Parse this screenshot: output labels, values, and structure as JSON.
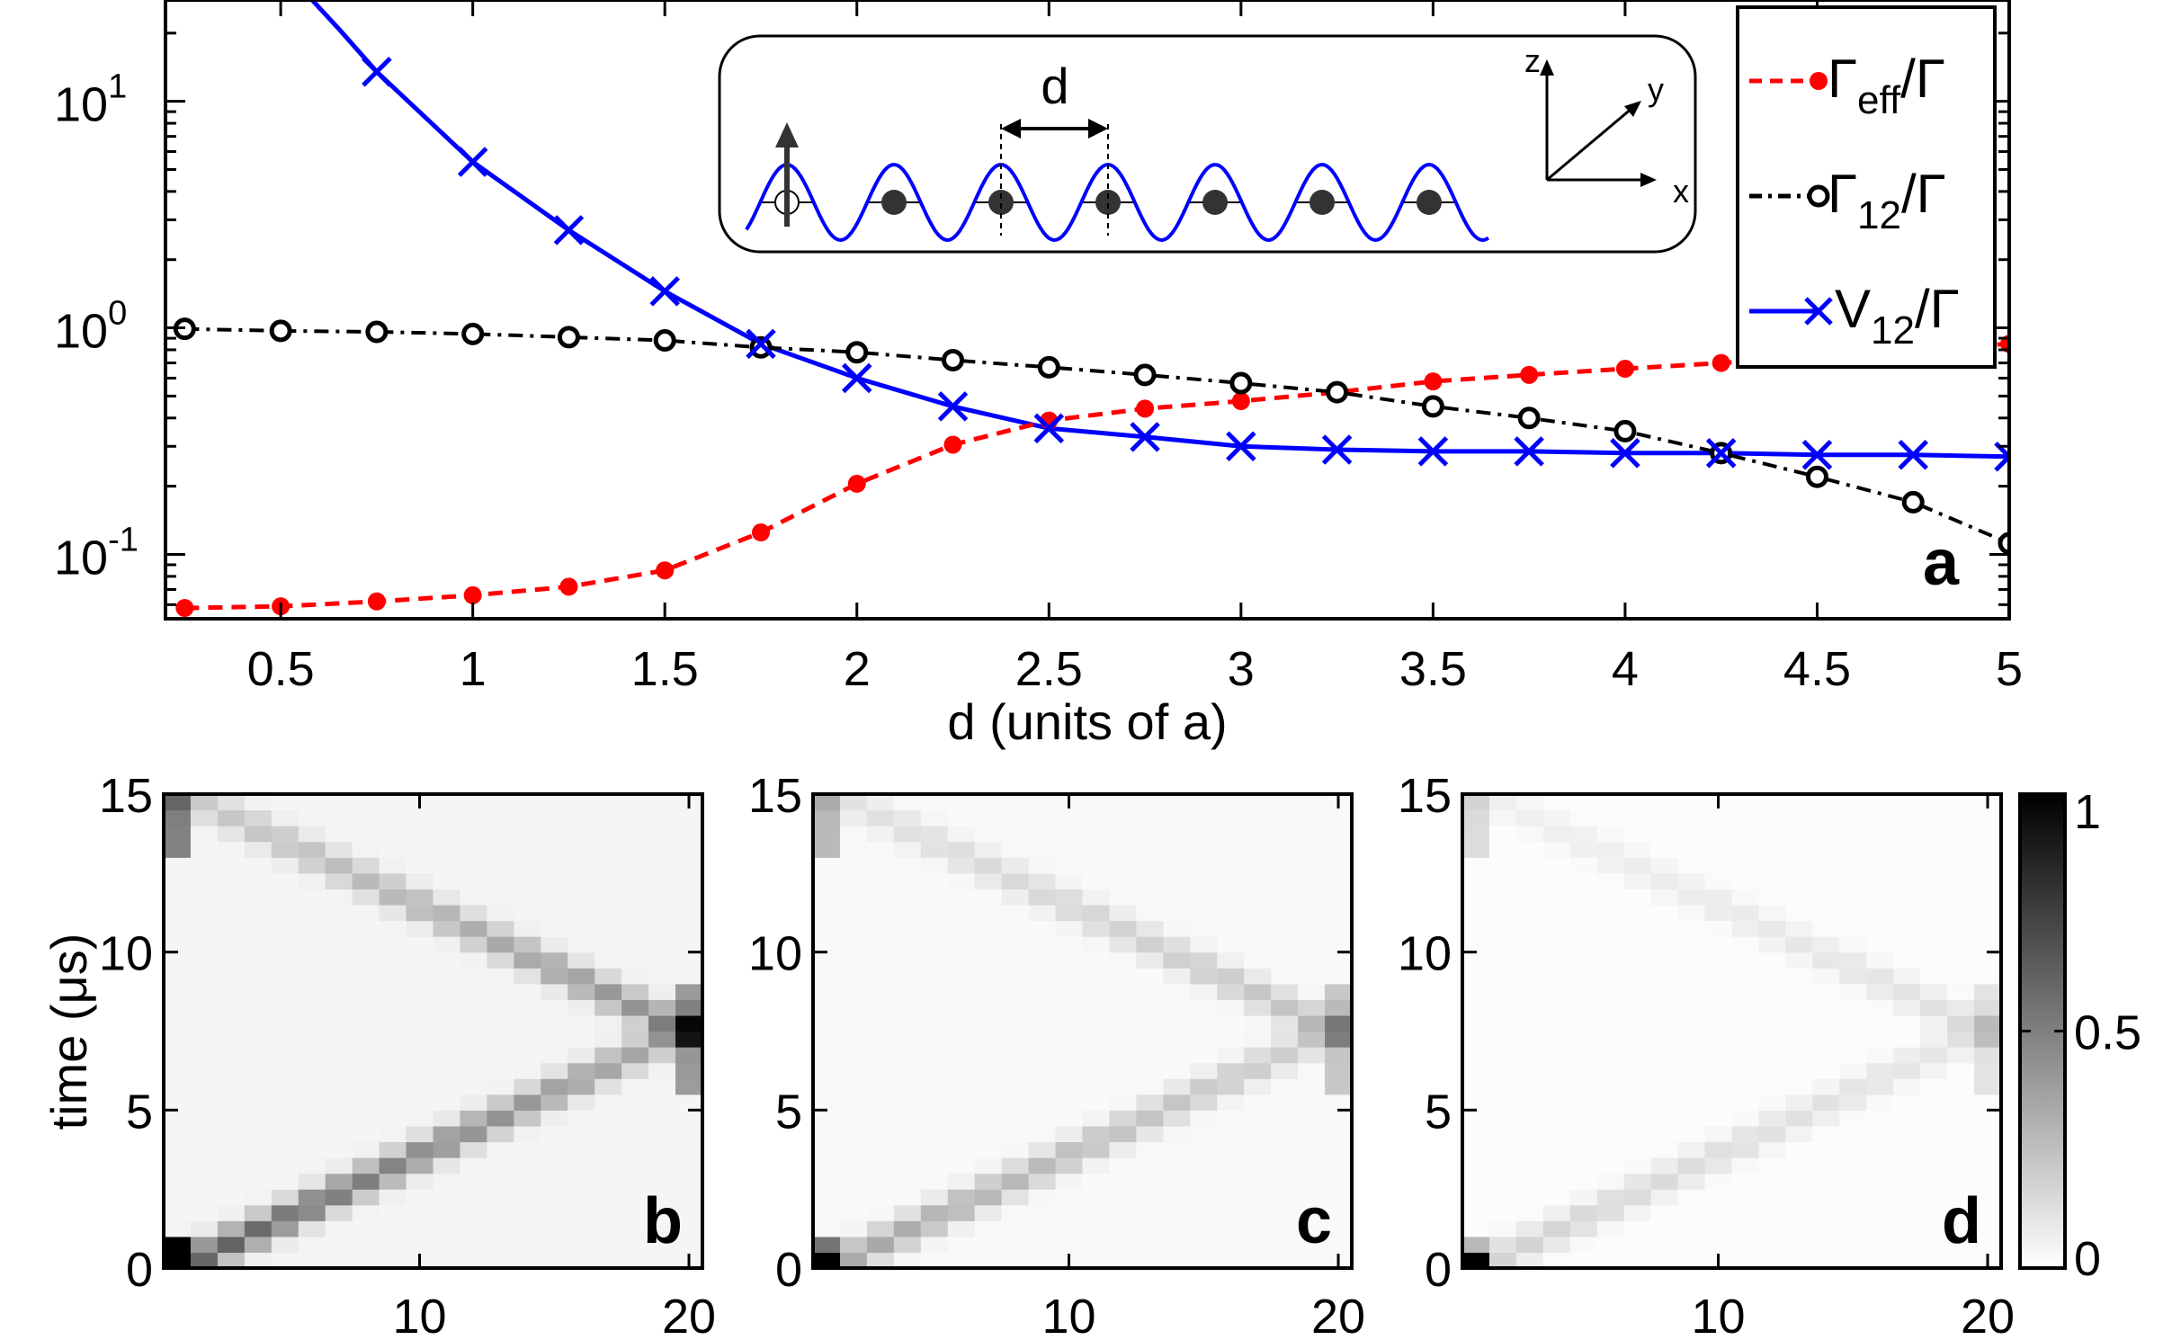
{
  "chart_data": [
    {
      "type": "line",
      "panel": "a",
      "panel_label": "a",
      "xlabel": "d (units of a)",
      "ylabel": "",
      "xlim": [
        0.2,
        5.0
      ],
      "ylim": [
        0.052,
        28
      ],
      "yscale": "log",
      "x_ticks": [
        "0.5",
        "1",
        "1.5",
        "2",
        "2.5",
        "3",
        "3.5",
        "4",
        "4.5",
        "5"
      ],
      "x_tick_values": [
        0.5,
        1,
        1.5,
        2,
        2.5,
        3,
        3.5,
        4,
        4.5,
        5
      ],
      "y_ticks": [
        {
          "base": "10",
          "exp": "1",
          "value": 10
        },
        {
          "base": "10",
          "exp": "0",
          "value": 1
        },
        {
          "base": "10",
          "exp": "-1",
          "value": 0.1
        }
      ],
      "legend": {
        "position": "top-right",
        "entries": [
          {
            "symbol": "Γ",
            "sub": "eff",
            "tail": "/Γ"
          },
          {
            "symbol": "Γ",
            "sub": "12",
            "tail": "/Γ"
          },
          {
            "symbol": "V",
            "sub": "12",
            "tail": "/Γ"
          }
        ]
      },
      "series": [
        {
          "name": "Γeff/Γ",
          "color": "#ff0000",
          "marker": "filled-circle",
          "line": "dashed",
          "x": [
            0.25,
            0.5,
            0.75,
            1.0,
            1.25,
            1.5,
            1.75,
            2.0,
            2.25,
            2.5,
            2.75,
            3.0,
            3.25,
            3.5,
            3.75,
            4.0,
            4.25,
            5.0
          ],
          "values": [
            0.058,
            0.059,
            0.062,
            0.066,
            0.072,
            0.085,
            0.125,
            0.205,
            0.305,
            0.39,
            0.44,
            0.475,
            0.52,
            0.58,
            0.62,
            0.66,
            0.7,
            0.85
          ]
        },
        {
          "name": "Γ12/Γ",
          "color": "#000000",
          "marker": "open-circle",
          "line": "dash-dot",
          "x": [
            0.25,
            0.5,
            0.75,
            1.0,
            1.25,
            1.5,
            1.75,
            2.0,
            2.25,
            2.5,
            2.75,
            3.0,
            3.25,
            3.5,
            3.75,
            4.0,
            4.25,
            4.5,
            4.75,
            5.0
          ],
          "values": [
            0.99,
            0.97,
            0.96,
            0.94,
            0.91,
            0.88,
            0.82,
            0.78,
            0.72,
            0.67,
            0.62,
            0.57,
            0.52,
            0.45,
            0.4,
            0.35,
            0.28,
            0.22,
            0.17,
            0.112
          ]
        },
        {
          "name": "V12/Γ",
          "color": "#0000ff",
          "marker": "x",
          "line": "solid",
          "x": [
            0.75,
            1.0,
            1.25,
            1.5,
            1.75,
            2.0,
            2.25,
            2.5,
            2.75,
            3.0,
            3.25,
            3.5,
            3.75,
            4.0,
            4.25,
            4.5,
            4.75,
            5.0
          ],
          "values": [
            13.5,
            5.4,
            2.7,
            1.45,
            0.85,
            0.6,
            0.45,
            0.36,
            0.33,
            0.3,
            0.29,
            0.285,
            0.285,
            0.28,
            0.28,
            0.275,
            0.275,
            0.27
          ]
        }
      ],
      "inset": {
        "spacing_label": "d",
        "axes": {
          "z": "z",
          "y": "y",
          "x": "x"
        },
        "atoms": 7
      }
    },
    {
      "type": "heatmap",
      "panel": "b",
      "panel_label": "b",
      "ylabel": "time (μs)",
      "y_ticks": [
        "0",
        "5",
        "10",
        "15"
      ],
      "x_ticks": [
        "10",
        "20"
      ],
      "xlim": [
        1,
        20
      ],
      "ylim": [
        0,
        15
      ],
      "contrast": 1.0
    },
    {
      "type": "heatmap",
      "panel": "c",
      "panel_label": "c",
      "y_ticks": [
        "0",
        "5",
        "10",
        "15"
      ],
      "x_ticks": [
        "10",
        "20"
      ],
      "xlim": [
        1,
        20
      ],
      "ylim": [
        0,
        15
      ],
      "contrast": 0.55
    },
    {
      "type": "heatmap",
      "panel": "d",
      "panel_label": "d",
      "y_ticks": [
        "0",
        "5",
        "10",
        "15"
      ],
      "x_ticks": [
        "10",
        "20"
      ],
      "xlim": [
        1,
        20
      ],
      "ylim": [
        0,
        15
      ],
      "contrast": 0.28
    }
  ],
  "colorbar": {
    "ticks": [
      "0",
      "0.5",
      "1"
    ],
    "tick_values": [
      0,
      0.5,
      1
    ],
    "range": [
      0,
      1
    ]
  }
}
